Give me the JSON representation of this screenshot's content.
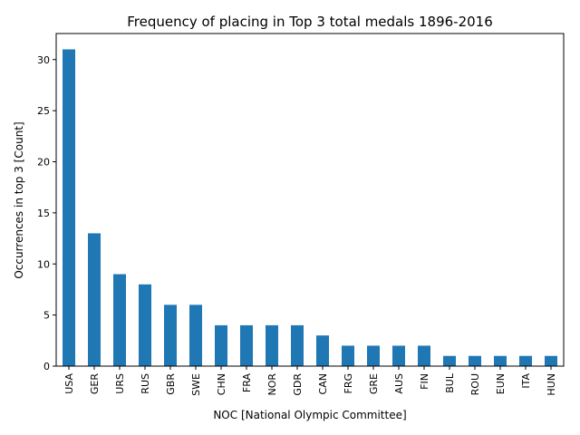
{
  "chart_data": {
    "type": "bar",
    "title": "Frequency of placing in Top 3 total medals 1896-2016",
    "xlabel": "NOC [National Olympic Committee]",
    "ylabel": "Occurrences in top 3 [Count]",
    "categories": [
      "USA",
      "GER",
      "URS",
      "RUS",
      "GBR",
      "SWE",
      "CHN",
      "FRA",
      "NOR",
      "GDR",
      "CAN",
      "FRG",
      "GRE",
      "AUS",
      "FIN",
      "BUL",
      "ROU",
      "EUN",
      "ITA",
      "HUN"
    ],
    "values": [
      31,
      13,
      9,
      8,
      6,
      6,
      4,
      4,
      4,
      4,
      3,
      2,
      2,
      2,
      2,
      1,
      1,
      1,
      1,
      1
    ],
    "ylim": [
      0,
      32.55
    ],
    "yticks": [
      0,
      5,
      10,
      15,
      20,
      25,
      30
    ],
    "color": "#1f77b4",
    "grid": false,
    "legend": false
  }
}
